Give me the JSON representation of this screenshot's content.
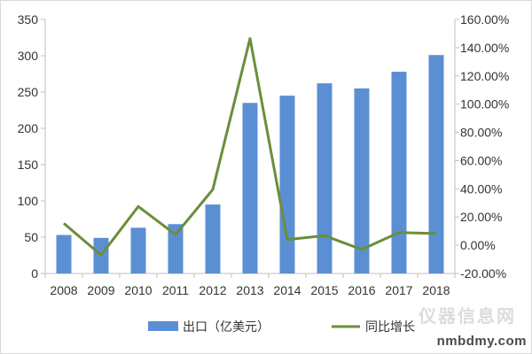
{
  "chart_data": {
    "type": "bar+line",
    "categories": [
      "2008",
      "2009",
      "2010",
      "2011",
      "2012",
      "2013",
      "2014",
      "2015",
      "2016",
      "2017",
      "2018"
    ],
    "series": [
      {
        "name": "出口（亿美元）",
        "type": "bar",
        "axis": "left",
        "color": "#5b8fd4",
        "values": [
          53,
          49,
          63,
          68,
          95,
          235,
          245,
          262,
          255,
          278,
          301
        ]
      },
      {
        "name": "同比增长",
        "type": "line",
        "axis": "right",
        "color": "#6b8e3a",
        "values": [
          15.5,
          -7.0,
          27.5,
          7.5,
          39.5,
          146.5,
          4.0,
          6.8,
          -3.0,
          9.0,
          8.3
        ]
      }
    ],
    "y_left": {
      "min": 0,
      "max": 350,
      "ticks": [
        "0",
        "50",
        "100",
        "150",
        "200",
        "250",
        "300",
        "350"
      ]
    },
    "y_right": {
      "min": -20,
      "max": 160,
      "ticks": [
        "-20.00%",
        "0.00%",
        "20.00%",
        "40.00%",
        "60.00%",
        "80.00%",
        "100.00%",
        "120.00%",
        "140.00%",
        "160.00%"
      ]
    },
    "grid": false,
    "legend_position": "bottom"
  },
  "watermark": {
    "text": "nmbdmy.com",
    "ghost_text": "仪器信息网"
  }
}
